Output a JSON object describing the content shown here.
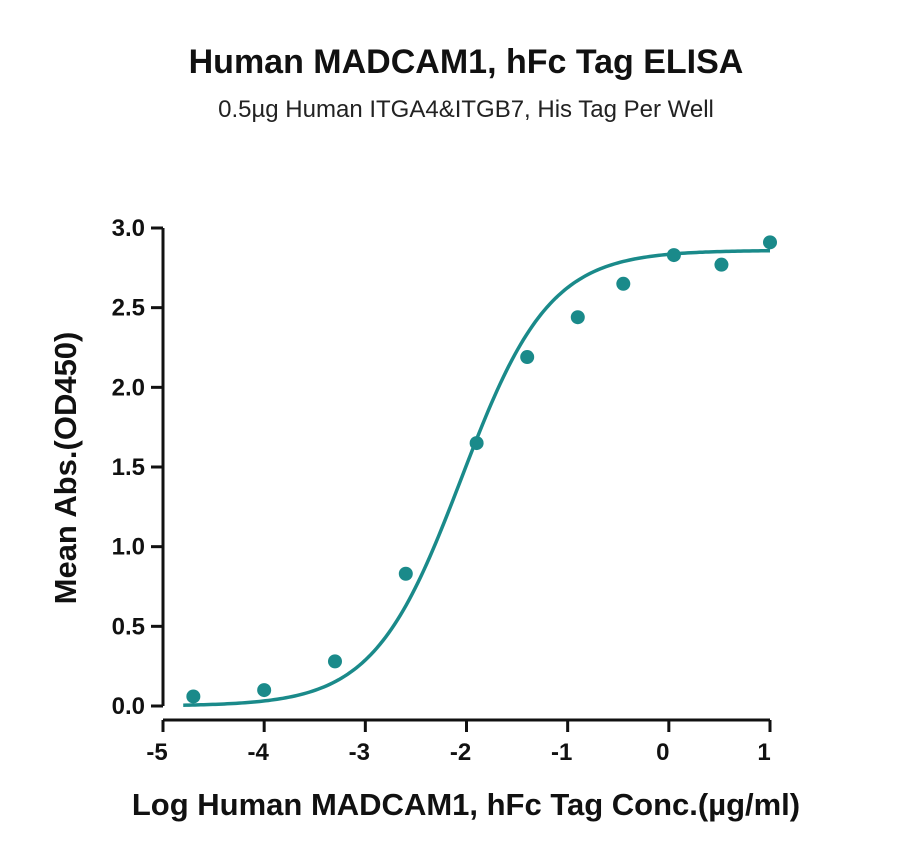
{
  "chart_data": {
    "type": "scatter",
    "title": "Human MADCAM1, hFc Tag ELISA",
    "subtitle": "0.5µg Human ITGA4&ITGB7, His Tag Per Well",
    "xlabel": "Log Human MADCAM1, hFc Tag Conc.(µg/ml)",
    "ylabel": "Mean Abs.(OD450)",
    "xlim": [
      -5,
      1
    ],
    "ylim": [
      0,
      3.0
    ],
    "x_ticks": [
      "-5",
      "-4",
      "-3",
      "-2",
      "-1",
      "0",
      "1"
    ],
    "y_ticks": [
      "0.0",
      "0.5",
      "1.0",
      "1.5",
      "2.0",
      "2.5",
      "3.0"
    ],
    "grid": false,
    "color": "#1a8a8a",
    "series": [
      {
        "points": [
          {
            "x": -4.7,
            "y": 0.06
          },
          {
            "x": -4.0,
            "y": 0.1
          },
          {
            "x": -3.3,
            "y": 0.28
          },
          {
            "x": -2.6,
            "y": 0.83
          },
          {
            "x": -1.9,
            "y": 1.65
          },
          {
            "x": -1.4,
            "y": 2.19
          },
          {
            "x": -0.9,
            "y": 2.44
          },
          {
            "x": -0.45,
            "y": 2.65
          },
          {
            "x": 0.05,
            "y": 2.83
          },
          {
            "x": 0.52,
            "y": 2.77
          },
          {
            "x": 1.0,
            "y": 2.91
          }
        ],
        "fit": {
          "model": "4PL",
          "bottom": 0.0,
          "top": 2.86,
          "logEC50": -2.05,
          "hill": 1.0
        }
      }
    ]
  }
}
